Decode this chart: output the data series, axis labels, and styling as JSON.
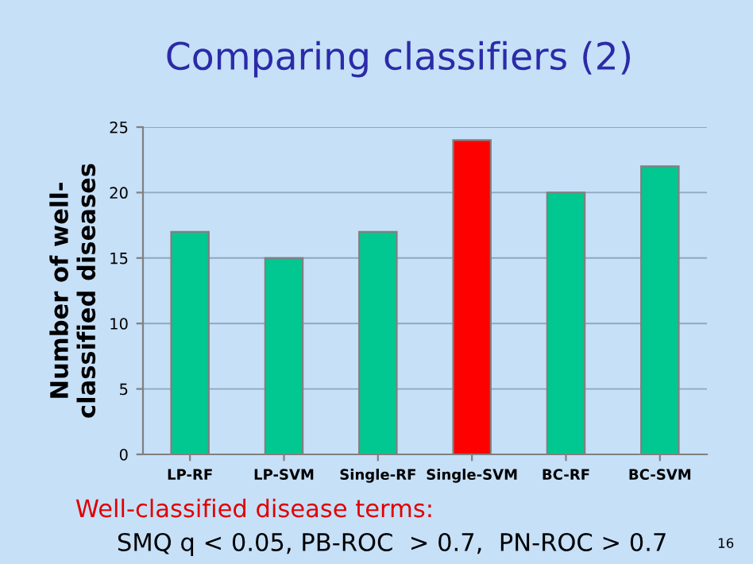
{
  "chart_data": {
    "type": "bar",
    "title": "Comparing classifiers (2)",
    "ylabel": "Number of well-\nclassified diseases",
    "categories": [
      "LP-RF",
      "LP-SVM",
      "Single-RF",
      "Single-SVM",
      "BC-RF",
      "BC-SVM"
    ],
    "values": [
      17,
      15,
      17,
      24,
      20,
      22
    ],
    "colors": [
      "#00c890",
      "#00c890",
      "#00c890",
      "#ff0000",
      "#00c890",
      "#00c890"
    ],
    "ylim": [
      0,
      25
    ],
    "yticks": [
      0,
      5,
      10,
      15,
      20,
      25
    ],
    "grid": "y",
    "annotations": [
      "Well-classified disease terms:",
      "SMQ q < 0.05, PB-ROC  > 0.7,  PN-ROC > 0.7",
      "16"
    ]
  }
}
